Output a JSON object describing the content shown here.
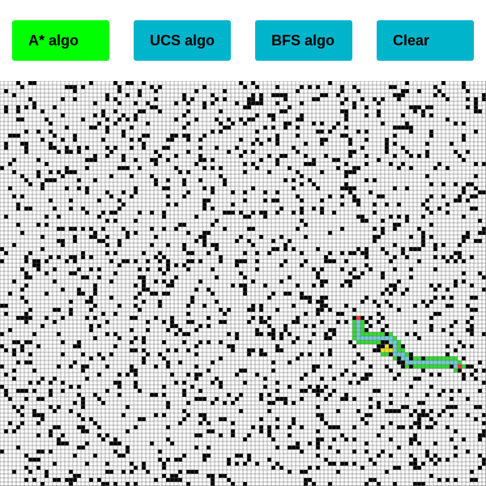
{
  "toolbar": {
    "buttons": [
      {
        "label": "A* algo",
        "color": "#00ff00",
        "active": true
      },
      {
        "label": "UCS algo",
        "color": "#00b4cc",
        "active": false
      },
      {
        "label": "BFS algo",
        "color": "#00b4cc",
        "active": false
      },
      {
        "label": "Clear",
        "color": "#00b4cc",
        "active": false
      }
    ]
  },
  "grid": {
    "cols": 120,
    "rows": 100,
    "wall_density": 0.15,
    "seed": 7,
    "start": [
      113,
      70
    ],
    "goal": [
      88,
      58
    ],
    "colors": {
      "background": "#ffffff",
      "line": "#6a6a6a",
      "wall": "#000000",
      "explored": "#f0e21a",
      "frontier": "#33dd33",
      "path": "#6ecfd6",
      "start": "#ff3b2f",
      "goal": "#ff3b2f"
    }
  }
}
